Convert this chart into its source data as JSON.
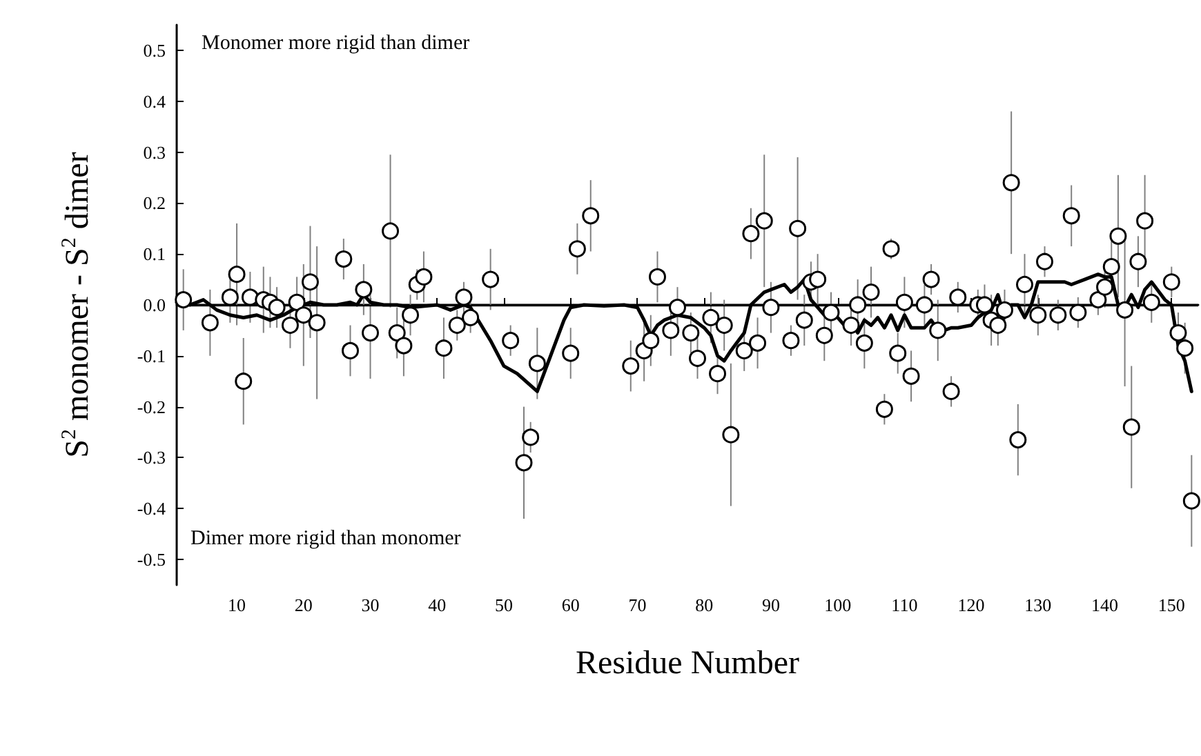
{
  "chart_data": {
    "type": "scatter",
    "xlabel": "Residue Number",
    "ylabel": "S$^{2}$ monomer - S$^{2}$ dimer",
    "annotations": [
      "Monomer more rigid than dimer",
      "Dimer more rigid than monomer"
    ],
    "xlim": [
      1,
      154
    ],
    "xticks": [
      10,
      20,
      30,
      40,
      50,
      60,
      70,
      80,
      90,
      100,
      110,
      120,
      130,
      140,
      150
    ],
    "ylim": [
      -0.55,
      0.55
    ],
    "yticks": [
      -0.5,
      -0.4,
      -0.3,
      -0.2,
      -0.1,
      {
        "value": 0,
        "label": "0.0"
      },
      0.1,
      0.2,
      0.3,
      0.4,
      0.5
    ],
    "grid": false,
    "ref_lines": [
      {
        "axis": "y",
        "value": 0,
        "color": "#000000",
        "line_style": "solid"
      }
    ],
    "series": [
      {
        "color": "#000000",
        "marker": "circle",
        "x": [
          2,
          6,
          9,
          10,
          11,
          12,
          14,
          15,
          16,
          18,
          19,
          20,
          21,
          22,
          26,
          27,
          29,
          30,
          33,
          34,
          35,
          36,
          37,
          38,
          41,
          43,
          44,
          45,
          48,
          51,
          53,
          54,
          55,
          60,
          61,
          63,
          69,
          71,
          72,
          73,
          75,
          76,
          78,
          79,
          81,
          82,
          83,
          84,
          86,
          87,
          88,
          89,
          90,
          93,
          94,
          95,
          96,
          97,
          98,
          99,
          102,
          103,
          104,
          105,
          107,
          108,
          109,
          110,
          111,
          113,
          114,
          115,
          117,
          118,
          121,
          122,
          123,
          124,
          125,
          126,
          127,
          128,
          130,
          131,
          133,
          135,
          136,
          139,
          140,
          141,
          142,
          143,
          144,
          145,
          146,
          147,
          150,
          151,
          152,
          153
        ],
        "values": [
          0.01,
          -0.035,
          0.015,
          0.06,
          -0.15,
          0.015,
          0.01,
          0.005,
          -0.005,
          -0.04,
          0.005,
          -0.02,
          0.045,
          -0.035,
          0.09,
          -0.09,
          0.03,
          -0.055,
          0.145,
          -0.055,
          -0.08,
          -0.02,
          0.04,
          0.055,
          -0.085,
          -0.04,
          0.015,
          -0.025,
          0.05,
          -0.07,
          -0.31,
          -0.26,
          -0.115,
          -0.095,
          0.11,
          0.175,
          -0.12,
          -0.09,
          -0.07,
          0.055,
          -0.05,
          -0.005,
          -0.055,
          -0.105,
          -0.025,
          -0.135,
          -0.04,
          -0.255,
          -0.09,
          0.14,
          -0.075,
          0.165,
          -0.005,
          -0.07,
          0.15,
          -0.03,
          0.045,
          0.05,
          -0.06,
          -0.015,
          -0.04,
          0.0,
          -0.075,
          0.025,
          -0.205,
          0.11,
          -0.095,
          0.005,
          -0.14,
          0.0,
          0.05,
          -0.05,
          -0.17,
          0.015,
          0.0,
          0.0,
          -0.03,
          -0.04,
          -0.01,
          0.24,
          -0.265,
          0.04,
          -0.02,
          0.085,
          -0.02,
          0.175,
          -0.015,
          0.01,
          0.035,
          0.075,
          0.135,
          -0.01,
          -0.24,
          0.085,
          0.165,
          0.005,
          0.045,
          -0.055,
          -0.085,
          -0.385
        ],
        "errors": [
          0.06,
          0.065,
          0.05,
          0.1,
          0.085,
          0.05,
          0.065,
          0.05,
          0.04,
          0.045,
          0.05,
          0.1,
          0.11,
          0.15,
          0.04,
          0.05,
          0.05,
          0.09,
          0.15,
          0.05,
          0.06,
          0.04,
          0.03,
          0.05,
          0.06,
          0.03,
          0.03,
          0.03,
          0.06,
          0.03,
          0.11,
          0.03,
          0.07,
          0.05,
          0.05,
          0.07,
          0.05,
          0.06,
          0.05,
          0.05,
          0.05,
          0.04,
          0.04,
          0.04,
          0.05,
          0.04,
          0.05,
          0.14,
          0.04,
          0.05,
          0.05,
          0.13,
          0.05,
          0.03,
          0.14,
          0.05,
          0.04,
          0.05,
          0.05,
          0.04,
          0.04,
          0.05,
          0.05,
          0.05,
          0.03,
          0.02,
          0.04,
          0.05,
          0.05,
          0.04,
          0.03,
          0.06,
          0.03,
          0.03,
          0.03,
          0.04,
          0.05,
          0.04,
          0.04,
          0.14,
          0.07,
          0.06,
          0.04,
          0.03,
          0.03,
          0.06,
          0.03,
          0.03,
          0.04,
          0.05,
          0.12,
          0.15,
          0.12,
          0.05,
          0.09,
          0.04,
          0.03,
          0.04,
          0.05,
          0.09
        ]
      },
      {
        "type": "line",
        "color": "#000000",
        "marker": "none",
        "line_style": "solid",
        "x": [
          1,
          3,
          5,
          7,
          9,
          11,
          13,
          15,
          16,
          17,
          19,
          21,
          23,
          25,
          27,
          28,
          29,
          30,
          32,
          34,
          36,
          40,
          42,
          43,
          44,
          45,
          48,
          50,
          52,
          55,
          57,
          59,
          60,
          62,
          65,
          68,
          70,
          71,
          72,
          73,
          74,
          76,
          78,
          80,
          81,
          82,
          83,
          84,
          86,
          87,
          89,
          90,
          92,
          93,
          94,
          95,
          96,
          97,
          98,
          100,
          101,
          102,
          103,
          104,
          105,
          106,
          107,
          108,
          109,
          110,
          111,
          112,
          113,
          114,
          115,
          116,
          117,
          118,
          120,
          121,
          122,
          123,
          124,
          125,
          126,
          127,
          128,
          129,
          130,
          132,
          134,
          135,
          137,
          139,
          140,
          141,
          142,
          143,
          144,
          145,
          146,
          147,
          149,
          150,
          151,
          152,
          153
        ],
        "values": [
          0.005,
          0.0,
          0.01,
          -0.01,
          -0.02,
          -0.025,
          -0.02,
          -0.03,
          -0.025,
          -0.02,
          -0.005,
          0.005,
          0.0,
          0.0,
          0.005,
          0.0,
          0.02,
          0.005,
          0.0,
          0.0,
          -0.005,
          0.0,
          -0.01,
          -0.005,
          0.0,
          -0.005,
          -0.07,
          -0.12,
          -0.135,
          -0.17,
          -0.1,
          -0.03,
          -0.005,
          0.0,
          -0.002,
          0.0,
          -0.005,
          -0.03,
          -0.06,
          -0.04,
          -0.03,
          -0.02,
          -0.025,
          -0.045,
          -0.06,
          -0.1,
          -0.11,
          -0.09,
          -0.055,
          0.0,
          0.025,
          0.03,
          0.04,
          0.025,
          0.035,
          0.05,
          0.01,
          -0.005,
          -0.02,
          -0.025,
          -0.04,
          -0.03,
          -0.055,
          -0.03,
          -0.04,
          -0.025,
          -0.045,
          -0.02,
          -0.05,
          -0.02,
          -0.045,
          -0.045,
          -0.045,
          -0.03,
          -0.05,
          -0.05,
          -0.045,
          -0.045,
          -0.04,
          -0.025,
          -0.015,
          -0.01,
          0.02,
          -0.025,
          0.0,
          0.0,
          -0.025,
          0.0,
          0.045,
          0.045,
          0.045,
          0.04,
          0.05,
          0.06,
          0.055,
          0.055,
          0.0,
          -0.005,
          0.02,
          -0.005,
          0.03,
          0.045,
          0.01,
          0.0,
          -0.08,
          -0.11,
          -0.17
        ]
      }
    ]
  }
}
